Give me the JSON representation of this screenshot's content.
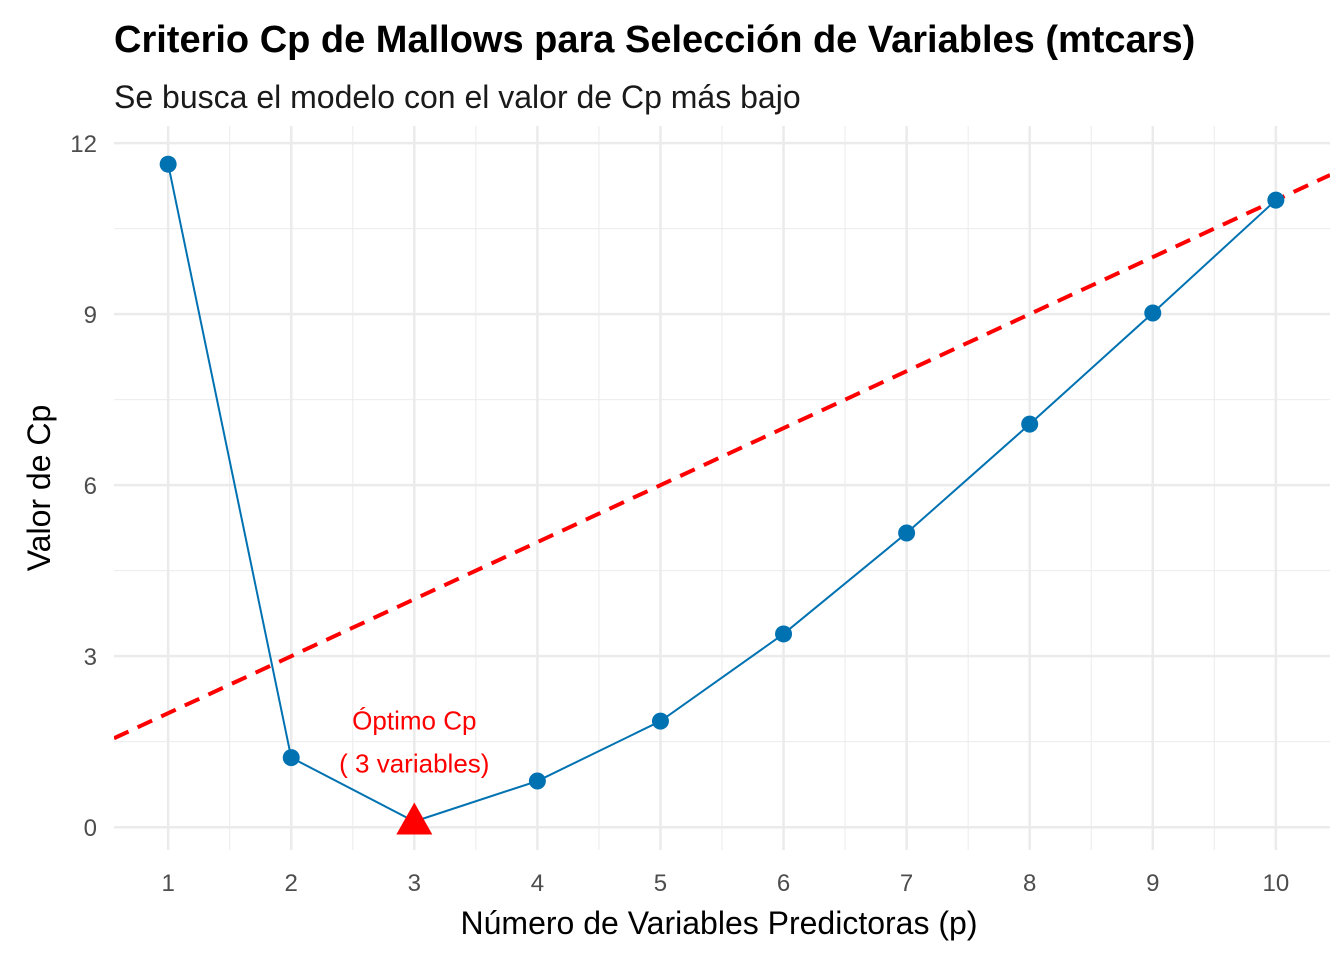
{
  "chart_data": {
    "type": "line",
    "title": "Criterio Cp de Mallows para Selección de Variables (mtcars)",
    "subtitle": "Se busca el modelo con el valor de Cp más bajo",
    "xlabel": "Número de Variables Predictoras (p)",
    "ylabel": "Valor de Cp",
    "x": [
      1,
      2,
      3,
      4,
      5,
      6,
      7,
      8,
      9,
      10
    ],
    "x_ticks": [
      "1",
      "2",
      "3",
      "4",
      "5",
      "6",
      "7",
      "8",
      "9",
      "10"
    ],
    "y_ticks": [
      "0",
      "3",
      "6",
      "9",
      "12"
    ],
    "xlim": [
      0.56,
      10.44
    ],
    "ylim": [
      -0.4,
      12.3
    ],
    "series": [
      {
        "values": [
          11.63,
          1.22,
          0.1,
          0.81,
          1.86,
          3.39,
          5.16,
          7.07,
          9.02,
          11.0
        ],
        "color": "#0072b2"
      }
    ],
    "reference_line": {
      "slope": 1,
      "intercept": 1,
      "color": "#ff0000",
      "style": "dashed"
    },
    "optimum": {
      "x": 3,
      "y": 0.1,
      "marker": "triangle",
      "color": "#ff0000"
    },
    "annotation": {
      "line1": "Óptimo Cp",
      "line2": "( 3 variables)"
    },
    "grid": true
  }
}
